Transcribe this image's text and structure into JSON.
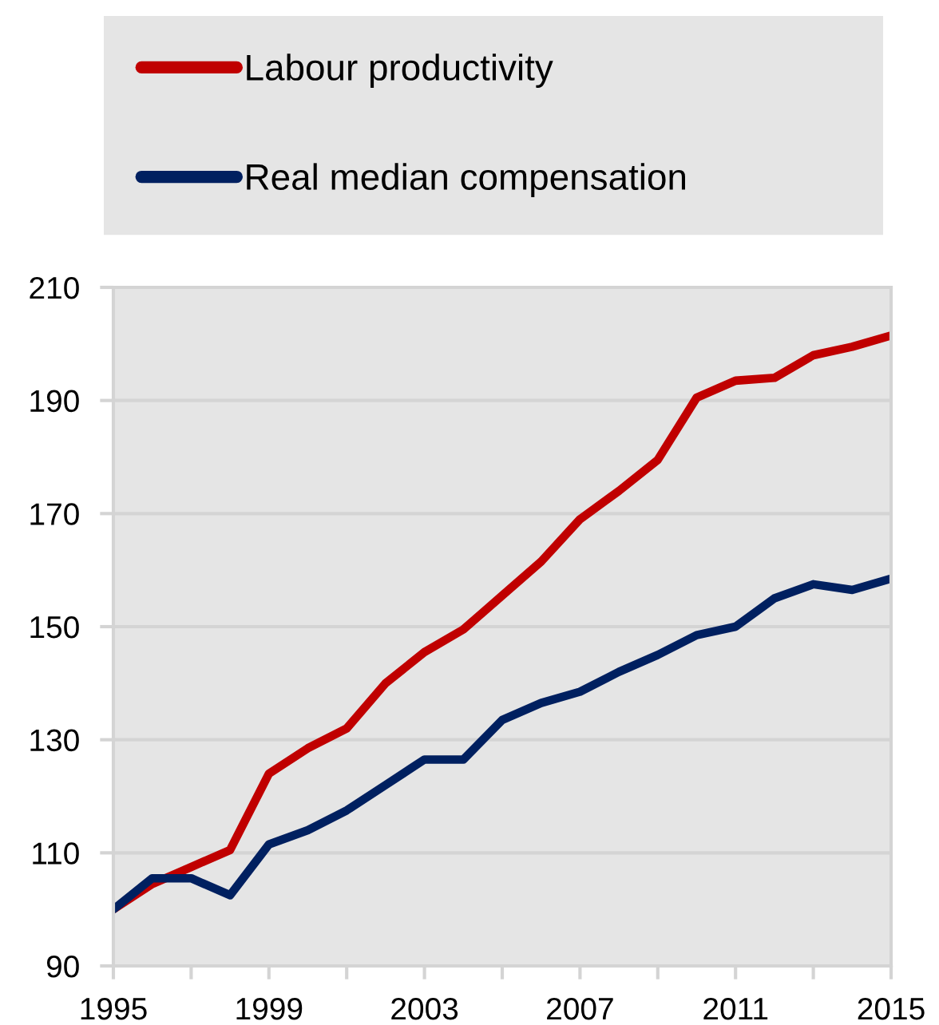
{
  "chart_data": {
    "type": "line",
    "x": [
      1995,
      1996,
      1997,
      1998,
      1999,
      2000,
      2001,
      2002,
      2003,
      2004,
      2005,
      2006,
      2007,
      2008,
      2009,
      2010,
      2011,
      2012,
      2013,
      2014,
      2015
    ],
    "series": [
      {
        "name": "Labour productivity",
        "color": "#c00000",
        "values": [
          100,
          104.5,
          107.5,
          110.5,
          124,
          128.5,
          132,
          140,
          145.5,
          149.5,
          155.5,
          161.5,
          169,
          174,
          179.5,
          190.5,
          193.5,
          194,
          198,
          199.5,
          201.5
        ]
      },
      {
        "name": "Real median compensation",
        "color": "#002060",
        "values": [
          100,
          105.5,
          105.5,
          102.5,
          111.5,
          114,
          117.5,
          122,
          126.5,
          126.5,
          133.5,
          136.5,
          138.5,
          142,
          145,
          148.5,
          150,
          155,
          157.5,
          156.5,
          158.5
        ]
      }
    ],
    "xlim": [
      1995,
      2015
    ],
    "xticks": [
      1995,
      {
        "value": 1997,
        "label": null
      },
      1999,
      {
        "value": 2001,
        "label": null
      },
      2003,
      {
        "value": 2005,
        "label": null
      },
      2007,
      {
        "value": 2009,
        "label": null
      },
      2011,
      {
        "value": 2013,
        "label": null
      },
      2015
    ],
    "ylim": [
      90,
      210
    ],
    "yticks": [
      90,
      110,
      130,
      150,
      170,
      190,
      210
    ],
    "grid": "y",
    "legend": "top"
  }
}
